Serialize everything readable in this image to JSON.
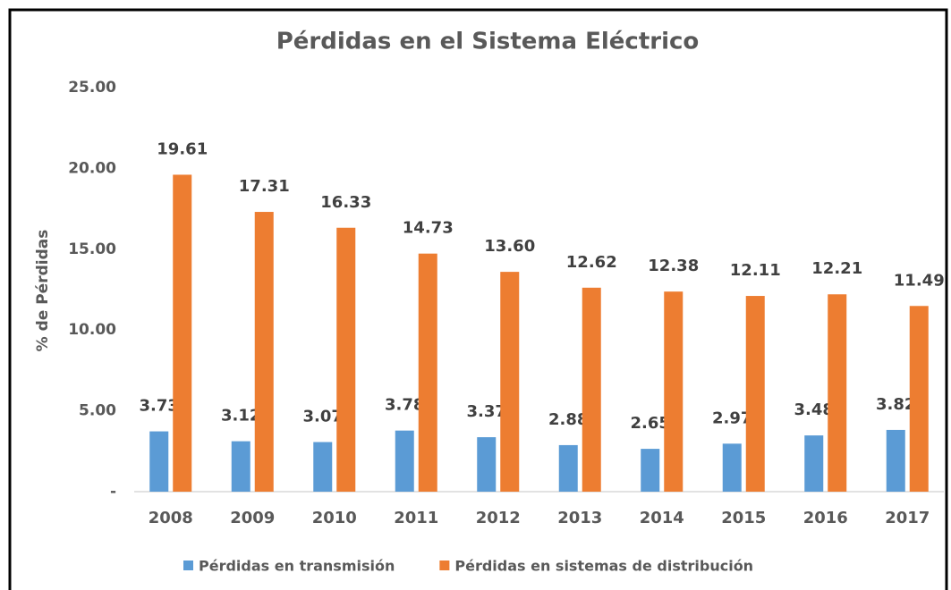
{
  "chart_data": {
    "type": "bar",
    "title": "Pérdidas en el Sistema Eléctrico",
    "ylabel": "% de Pérdidas",
    "categories": [
      "2008",
      "2009",
      "2010",
      "2011",
      "2012",
      "2013",
      "2014",
      "2015",
      "2016",
      "2017"
    ],
    "series": [
      {
        "name": "Pérdidas en transmisión",
        "color": "#5b9bd5",
        "values": [
          3.73,
          3.12,
          3.07,
          3.78,
          3.37,
          2.88,
          2.65,
          2.97,
          3.48,
          3.82
        ],
        "value_labels": [
          "3.73",
          "3.12",
          "3.07",
          "3.78",
          "3.37",
          "2.88",
          "2.65",
          "2.97",
          "3.48",
          "3.82"
        ]
      },
      {
        "name": "Pérdidas en sistemas de distribución",
        "color": "#ed7d31",
        "values": [
          19.61,
          17.31,
          16.33,
          14.73,
          13.6,
          12.62,
          12.38,
          12.11,
          12.21,
          11.49
        ],
        "value_labels": [
          "19.61",
          "17.31",
          "16.33",
          "14.73",
          "13.60",
          "12.62",
          "12.38",
          "12.11",
          "12.21",
          "11.49"
        ]
      }
    ],
    "ylim": [
      0,
      25
    ],
    "yticks": [
      {
        "value": 0,
        "label": "-"
      },
      {
        "value": 5,
        "label": "5.00"
      },
      {
        "value": 10,
        "label": "10.00"
      },
      {
        "value": 15,
        "label": "15.00"
      },
      {
        "value": 20,
        "label": "20.00"
      },
      {
        "value": 25,
        "label": "25.00"
      }
    ],
    "grid": false,
    "legend": "bottom"
  }
}
